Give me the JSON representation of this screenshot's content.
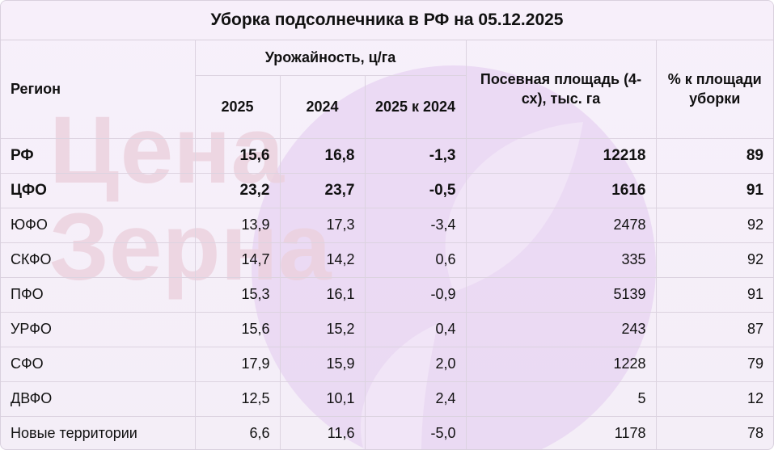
{
  "title": "Уборка подсолнечника в РФ на 05.12.2025",
  "headers": {
    "region": "Регион",
    "yield_group": "Урожайность, ц/га",
    "y2025": "2025",
    "y2024": "2024",
    "diff": "2025 к 2024",
    "area": "Посевная площадь (4-сх), тыс. га",
    "pct": "% к площади уборки"
  },
  "rows": [
    {
      "region": "РФ",
      "y2025": "15,6",
      "y2024": "16,8",
      "diff": "-1,3",
      "area": "12218",
      "pct": "89",
      "bold": true
    },
    {
      "region": "ЦФО",
      "y2025": "23,2",
      "y2024": "23,7",
      "diff": "-0,5",
      "area": "1616",
      "pct": "91",
      "bold": true
    },
    {
      "region": "ЮФО",
      "y2025": "13,9",
      "y2024": "17,3",
      "diff": "-3,4",
      "area": "2478",
      "pct": "92"
    },
    {
      "region": "СКФО",
      "y2025": "14,7",
      "y2024": "14,2",
      "diff": "0,6",
      "area": "335",
      "pct": "92"
    },
    {
      "region": "ПФО",
      "y2025": "15,3",
      "y2024": "16,1",
      "diff": "-0,9",
      "area": "5139",
      "pct": "91"
    },
    {
      "region": "УРФО",
      "y2025": "15,6",
      "y2024": "15,2",
      "diff": "0,4",
      "area": "243",
      "pct": "87"
    },
    {
      "region": "СФО",
      "y2025": "17,9",
      "y2024": "15,9",
      "diff": "2,0",
      "area": "1228",
      "pct": "79"
    },
    {
      "region": "ДВФО",
      "y2025": "12,5",
      "y2024": "10,1",
      "diff": "2,4",
      "area": "5",
      "pct": "12"
    },
    {
      "region": "Новые территории",
      "y2025": "6,6",
      "y2024": "11,6",
      "diff": "-5,0",
      "area": "1178",
      "pct": "78"
    }
  ],
  "watermark": {
    "line1": "Цена",
    "line2": "Зерна"
  },
  "colors": {
    "background": "#f5eff9",
    "watermark_text": "#ecd0dc",
    "watermark_logo": "#e6d1f0",
    "grid": "#dcd3e0"
  }
}
